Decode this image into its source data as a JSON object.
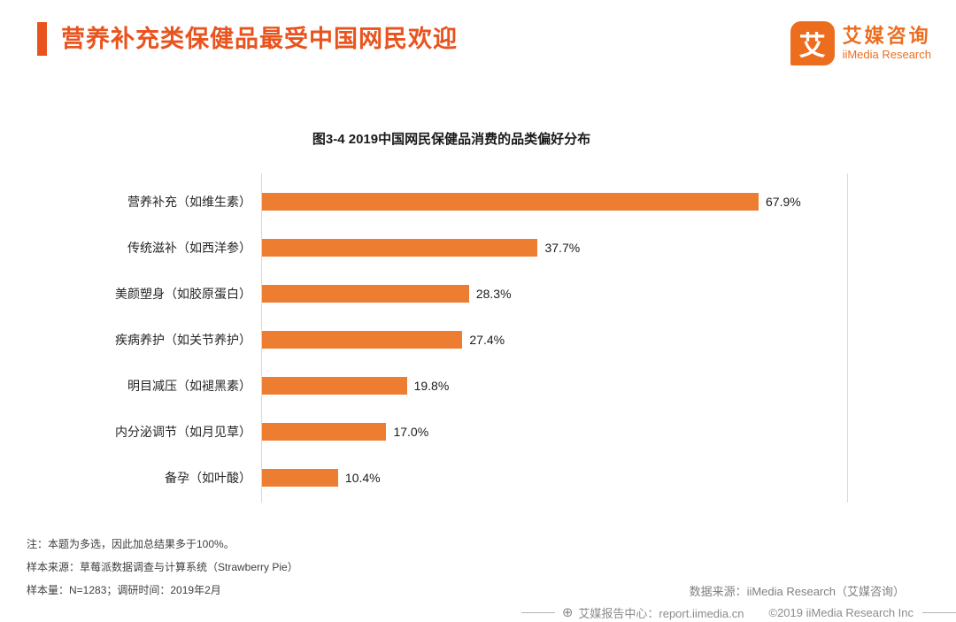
{
  "header": {
    "title": "营养补充类保健品最受中国网民欢迎",
    "logo": {
      "icon_char": "艾",
      "brand_cn": "艾媒咨询",
      "brand_en": "iiMedia Research"
    }
  },
  "colors": {
    "accent": "#E9531D",
    "bar": "#ED7D31",
    "axis_line": "#d9d9d9",
    "footer_gray": "#8c8c8c"
  },
  "chart_data": {
    "type": "bar",
    "orientation": "horizontal",
    "title": "图3-4 2019中国网民保健品消费的品类偏好分布",
    "categories": [
      "营养补充（如维生素）",
      "传统滋补（如西洋参）",
      "美颜塑身（如胶原蛋白）",
      "疾病养护（如关节养护）",
      "明目减压（如褪黑素）",
      "内分泌调节（如月见草）",
      "备孕（如叶酸）"
    ],
    "values": [
      67.9,
      37.7,
      28.3,
      27.4,
      19.8,
      17.0,
      10.4
    ],
    "value_labels": [
      "67.9%",
      "37.7%",
      "28.3%",
      "27.4%",
      "19.8%",
      "17.0%",
      "10.4%"
    ],
    "unit": "%",
    "xlim": [
      0,
      80
    ],
    "grid": false,
    "legend": false
  },
  "notes": {
    "note1": "注：本题为多选，因此加总结果多于100%。",
    "note2": "样本来源：草莓派数据调查与计算系统（Strawberry Pie）",
    "note3": "样本量：N=1283；调研时间：2019年2月",
    "datasource": "数据来源：iiMedia Research（艾媒咨询）"
  },
  "footer": {
    "report_center": "艾媒报告中心：report.iimedia.cn",
    "copyright": "©2019  iiMedia Research  Inc"
  }
}
